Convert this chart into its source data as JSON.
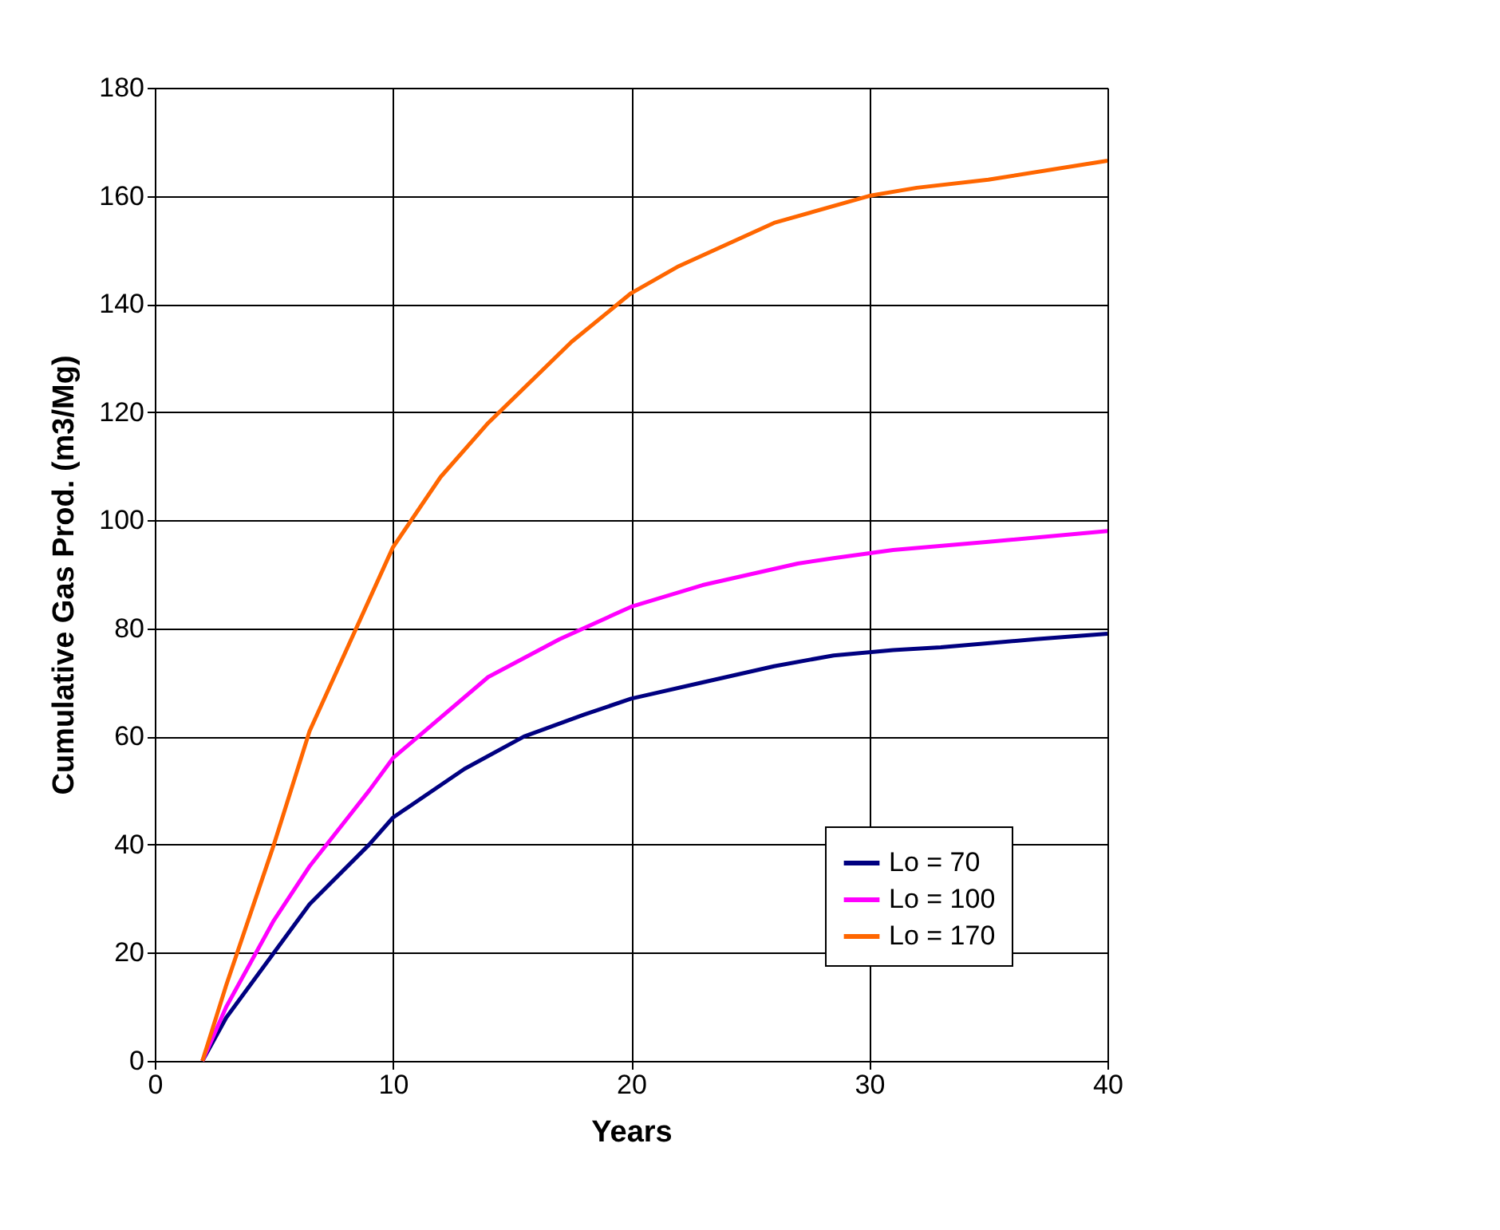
{
  "chart_data": {
    "type": "line",
    "xlabel": "Years",
    "ylabel": "Cumulative Gas Prod. (m3/Mg)",
    "xlim": [
      0,
      40
    ],
    "xticks": [
      0,
      10,
      20,
      30,
      40
    ],
    "ylim": [
      0,
      180
    ],
    "yticks": [
      0,
      20,
      40,
      60,
      80,
      100,
      120,
      140,
      160,
      180
    ],
    "grid": true,
    "legend": "bottom right",
    "marker": "none",
    "line_style": "solid",
    "series": [
      {
        "name": "Lo = 70",
        "color": "#000080",
        "x": [
          2,
          3,
          5,
          6.5,
          9,
          10,
          13,
          15.5,
          18,
          20,
          23,
          26,
          28.5,
          31,
          33,
          37,
          40
        ],
        "values": [
          0,
          8,
          20,
          29,
          40,
          45,
          54,
          60,
          64,
          67,
          70,
          73,
          75,
          76,
          76.5,
          78,
          79
        ]
      },
      {
        "name": "Lo = 100",
        "color": "#ff00ff",
        "x": [
          2,
          3,
          5,
          6.5,
          9,
          10,
          14,
          17,
          20,
          23,
          27,
          28.5,
          31,
          35,
          40
        ],
        "values": [
          0,
          10,
          26,
          36,
          50,
          56,
          71,
          78,
          84,
          88,
          92,
          93,
          94.5,
          96,
          98
        ]
      },
      {
        "name": "Lo = 170",
        "color": "#ff6600",
        "x": [
          2,
          3,
          5,
          6.5,
          10,
          12,
          14,
          17.5,
          20,
          22,
          26,
          30,
          32,
          35,
          40
        ],
        "values": [
          0,
          14,
          40,
          61,
          95,
          108,
          118,
          133,
          142,
          147,
          155,
          160,
          161.5,
          163,
          166.5
        ]
      }
    ]
  }
}
